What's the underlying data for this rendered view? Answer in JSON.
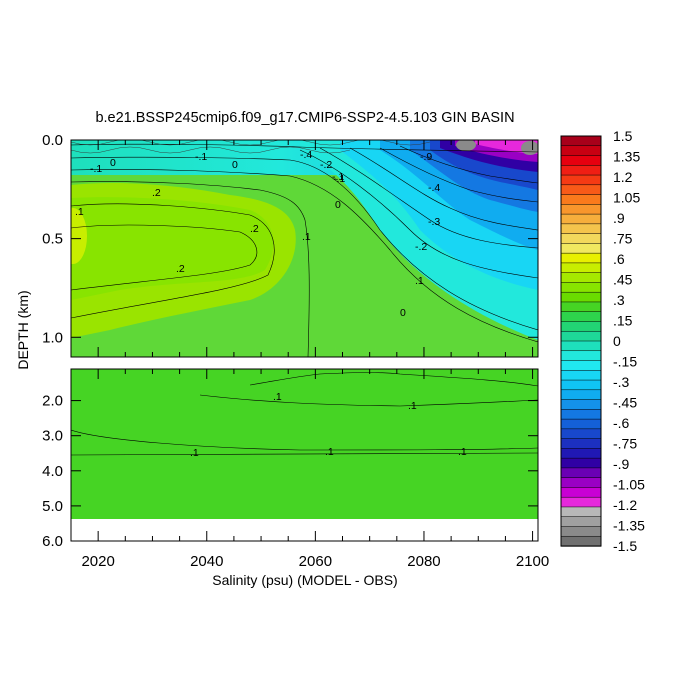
{
  "chart_data": {
    "type": "heatmap",
    "title": "b.e21.BSSP245cmip6.f09_g17.CMIP6-SSP2-4.5.103 GIN BASIN",
    "xlabel": "Salinity (psu) (MODEL - OBS)",
    "ylabel": "DEPTH (km)",
    "x_ticks": [
      "2020",
      "2040",
      "2060",
      "2080",
      "2100"
    ],
    "x_tick_values": [
      2020,
      2040,
      2060,
      2080,
      2100
    ],
    "xlim": [
      2015,
      2101
    ],
    "upper_panel": {
      "ylim": [
        0.0,
        1.1
      ],
      "y_ticks": [
        "0.0",
        "0.5",
        "1.0"
      ],
      "y_tick_values": [
        0.0,
        0.5,
        1.0
      ]
    },
    "lower_panel": {
      "ylim": [
        1.1,
        6.0
      ],
      "y_ticks": [
        "2.0",
        "3.0",
        "4.0",
        "5.0",
        "6.0"
      ],
      "y_tick_values": [
        2.0,
        3.0,
        4.0,
        5.0,
        6.0
      ]
    },
    "colorbar": {
      "labels": [
        "1.5",
        "1.35",
        "1.2",
        "1.05",
        ".9",
        ".75",
        ".6",
        ".45",
        ".3",
        ".15",
        "0",
        "-.15",
        "-.3",
        "-.45",
        "-.6",
        "-.75",
        "-.9",
        "-1.05",
        "-1.2",
        "-1.35",
        "-1.5"
      ],
      "colors": [
        "#a8001a",
        "#c80012",
        "#e6000f",
        "#f01e14",
        "#f53a14",
        "#f85a18",
        "#fa7a1c",
        "#f8962c",
        "#f6ae3c",
        "#f4c44c",
        "#f2d85c",
        "#f0e860",
        "#e8f000",
        "#c8ee00",
        "#a6e800",
        "#88e400",
        "#6adc00",
        "#46d424",
        "#2ed44c",
        "#22d474",
        "#1ed898",
        "#1ee0bc",
        "#22e8dc",
        "#20e8f0",
        "#18d6f4",
        "#10c4f4",
        "#10acf0",
        "#1492ea",
        "#1478e2",
        "#1460d8",
        "#1848cc",
        "#1c30c0",
        "#2018b4",
        "#3000a4",
        "#6a00b4",
        "#9a00c4",
        "#c800d4",
        "#e628dc",
        "#b8b8b8",
        "#a0a0a0",
        "#8a8a8a",
        "#707070"
      ]
    },
    "contour_labels_upper": [
      "0",
      "-.1",
      "-.4",
      "-.2",
      "-.1",
      "0",
      "-.9",
      "-.1",
      ".1",
      ".1",
      ".2",
      ".2",
      ".2",
      ".1",
      "0",
      "-.3",
      "-.2",
      "-.1",
      "0",
      "-.4"
    ],
    "contour_labels_lower": [
      ".1",
      ".1",
      ".1",
      ".1",
      ".1"
    ],
    "legend": "colorbar-right"
  }
}
